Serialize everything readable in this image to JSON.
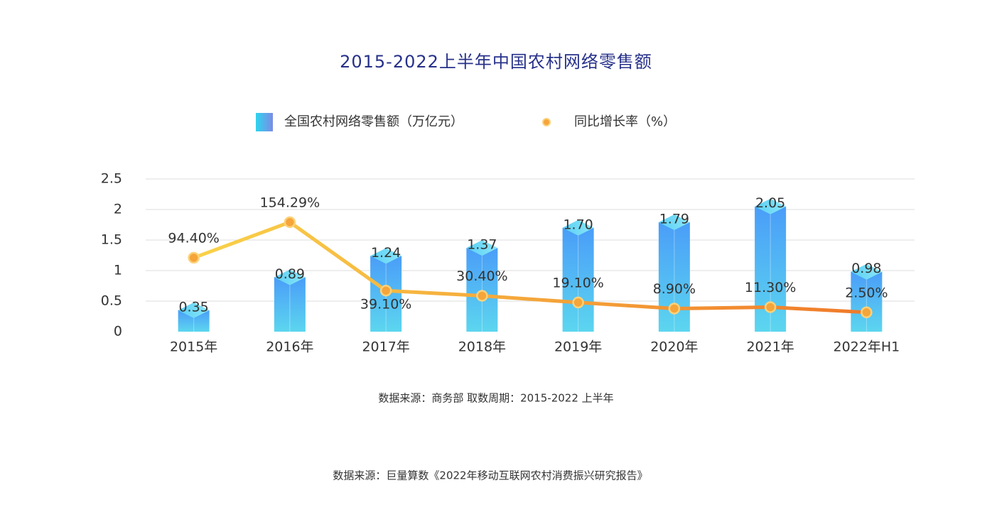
{
  "chart_data": {
    "type": "bar-line",
    "title": "2015-2022上半年中国农村网络零售额",
    "categories": [
      "2015年",
      "2016年",
      "2017年",
      "2018年",
      "2019年",
      "2020年",
      "2021年",
      "2022年H1"
    ],
    "series": [
      {
        "name": "全国农村网络零售额（万亿元）",
        "type": "bar",
        "color": "#4a9df8",
        "values": [
          0.35,
          0.89,
          1.24,
          1.37,
          1.7,
          1.79,
          2.05,
          0.98
        ],
        "value_labels": [
          "0.35",
          "0.89",
          "1.24",
          "1.37",
          "1.70",
          "1.79",
          "2.05",
          "0.98"
        ]
      },
      {
        "name": "同比增长率（%）",
        "type": "line",
        "axis": "y2",
        "color": "#f5a53a",
        "values": [
          94.4,
          154.29,
          39.1,
          30.4,
          19.1,
          8.9,
          11.3,
          2.5
        ],
        "value_labels": [
          "94.40%",
          "154.29%",
          "39.10%",
          "30.40%",
          "19.10%",
          "8.90%",
          "11.30%",
          "2.50%"
        ]
      }
    ],
    "ylim": [
      0,
      2.5
    ],
    "yticks": [
      0,
      0.5,
      1,
      1.5,
      2,
      2.5
    ],
    "y2lim": [
      -30,
      227
    ],
    "grid": true,
    "legend": "top",
    "notes": [
      "数据来源：商务部 取数周期：2015-2022 上半年",
      "数据来源：巨量算数《2022年移动互联网农村消费振兴研究报告》"
    ]
  }
}
